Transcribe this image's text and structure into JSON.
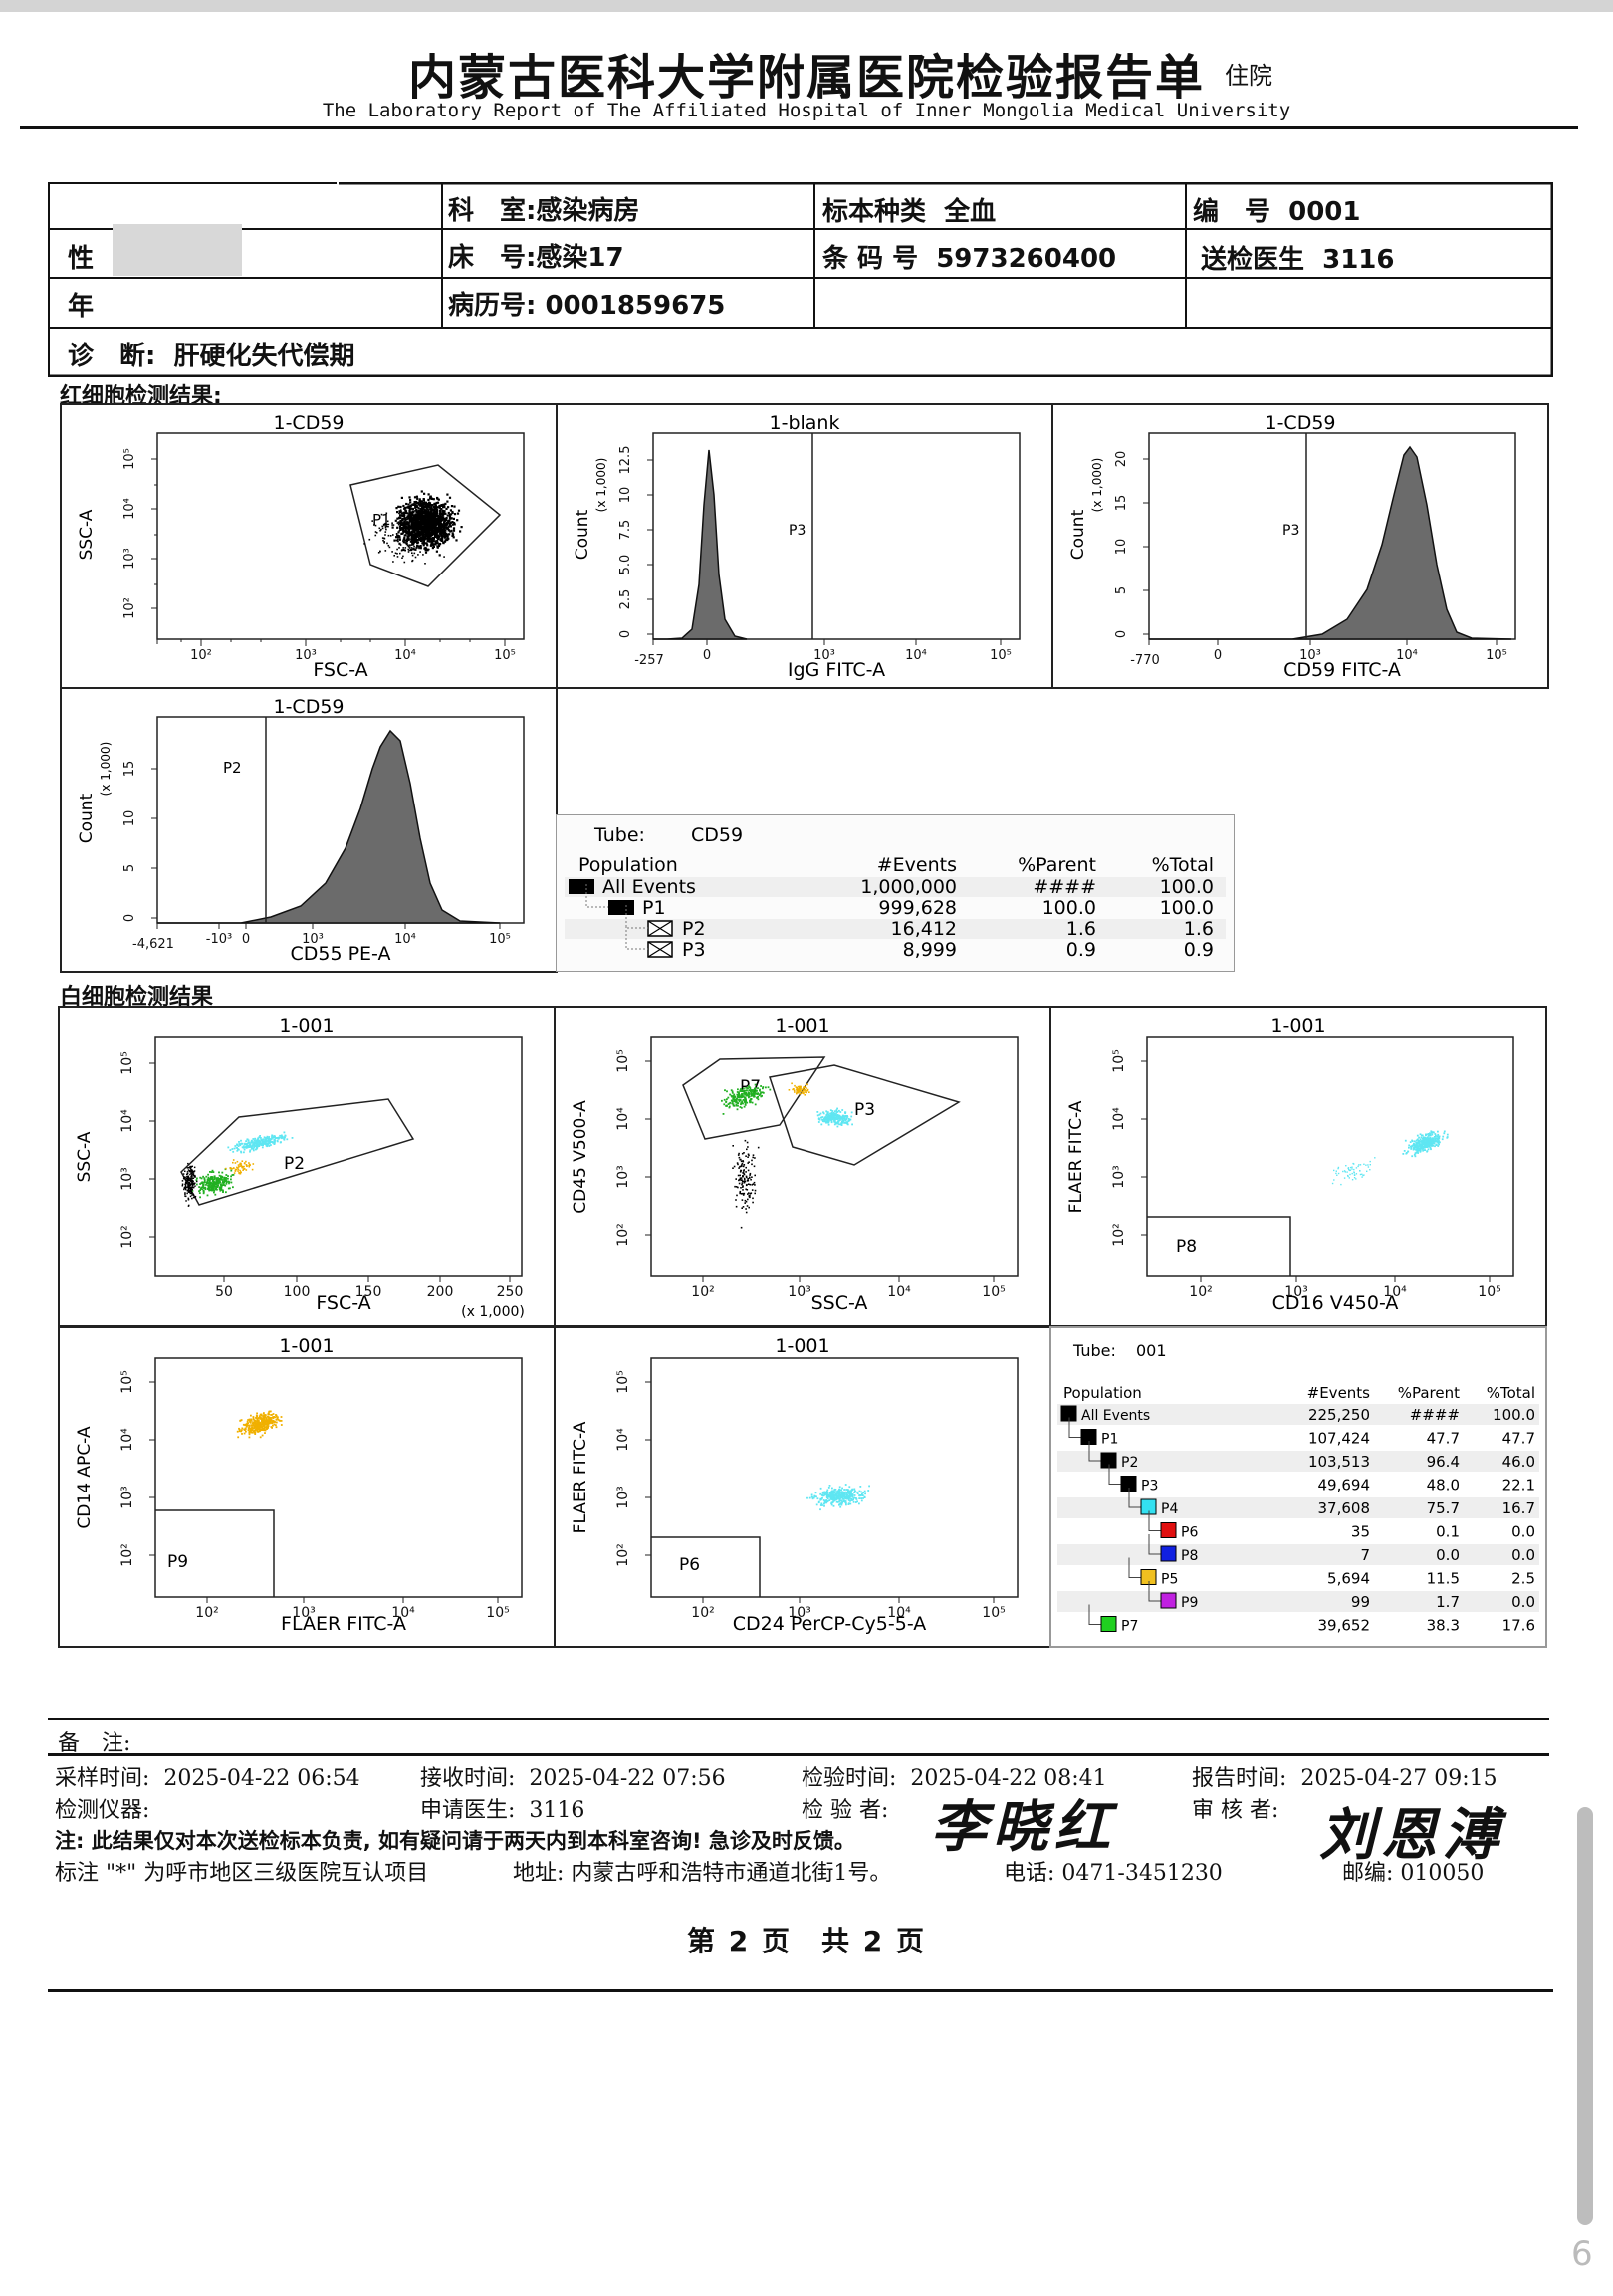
{
  "header": {
    "title_zh": "内蒙古医科大学附属医院检验报告单",
    "title_tag": "住院",
    "title_en": "The Laboratory Report of The  Affiliated Hospital of Inner Mongolia Medical University"
  },
  "patient": {
    "dept_label": "科　室:",
    "dept_value": "感染病房",
    "specimen_label": "标本种类",
    "specimen_value": "全血",
    "number_label": "编　号",
    "number_value": "0001",
    "gender_label": "性",
    "bed_label": "床　号:",
    "bed_value": "感染17",
    "barcode_label": "条 码 号",
    "barcode_value": "5973260400",
    "doctor_label": "送检医生",
    "doctor_value": "3116",
    "age_label": "年",
    "record_label": "病历号:",
    "record_value": "0001859675",
    "diagnosis_label": "诊　断:",
    "diagnosis_value": "肝硬化失代偿期"
  },
  "rbc_section_title": "红细胞检测结果:",
  "wbc_section_title": "白细胞检测结果",
  "plots": {
    "rbc_scatter": {
      "title": "1-CD59",
      "xlabel": "FSC-A",
      "ylabel": "SSC-A",
      "gate": "P1",
      "xticks": [
        "10²",
        "10³",
        "10⁴",
        "10⁵"
      ],
      "yticks": [
        "10²",
        "10³",
        "10⁴",
        "10⁵"
      ]
    },
    "rbc_blank": {
      "title": "1-blank",
      "xlabel": "IgG FITC-A",
      "ylabel": "Count",
      "yunit": "(x 1,000)",
      "gate": "P3",
      "xticks": [
        "-257",
        "0",
        "10³",
        "10⁴",
        "10⁵"
      ],
      "yticks": [
        "0",
        "2.5",
        "5.0",
        "7.5",
        "10",
        "12.5"
      ]
    },
    "rbc_cd59": {
      "title": "1-CD59",
      "xlabel": "CD59 FITC-A",
      "ylabel": "Count",
      "yunit": "(x 1,000)",
      "gate": "P3",
      "xticks": [
        "-770",
        "0",
        "10³",
        "10⁴",
        "10⁵"
      ],
      "yticks": [
        "0",
        "5",
        "10",
        "15",
        "20"
      ]
    },
    "rbc_cd55": {
      "title": "1-CD59",
      "xlabel": "CD55 PE-A",
      "ylabel": "Count",
      "yunit": "(x 1,000)",
      "gate": "P2",
      "xticks": [
        "-4,621",
        "-10³",
        "0",
        "10³",
        "10⁴",
        "10⁵"
      ],
      "yticks": [
        "0",
        "5",
        "10",
        "15"
      ]
    },
    "wbc_fsc_ssc": {
      "title": "1-001",
      "xlabel": "FSC-A",
      "xunit": "(x 1,000)",
      "ylabel": "SSC-A",
      "gate": "P2",
      "xticks": [
        "50",
        "100",
        "150",
        "200",
        "250"
      ],
      "yticks": [
        "10²",
        "10³",
        "10⁴",
        "10⁵"
      ]
    },
    "wbc_cd45": {
      "title": "1-001",
      "xlabel": "SSC-A",
      "ylabel": "CD45 V500-A",
      "gate_a": "P7",
      "gate_b": "P3",
      "xticks": [
        "10²",
        "10³",
        "10⁴",
        "10⁵"
      ],
      "yticks": [
        "10²",
        "10³",
        "10⁴",
        "10⁵"
      ]
    },
    "wbc_cd16": {
      "title": "1-001",
      "xlabel": "CD16 V450-A",
      "ylabel": "FLAER FITC-A",
      "gate": "P8",
      "xticks": [
        "10²",
        "10³",
        "10⁴",
        "10⁵"
      ],
      "yticks": [
        "10²",
        "10³",
        "10⁴",
        "10⁵"
      ]
    },
    "wbc_cd14": {
      "title": "1-001",
      "xlabel": "FLAER FITC-A",
      "ylabel": "CD14 APC-A",
      "gate": "P9",
      "xticks": [
        "10²",
        "10³",
        "10⁴",
        "10⁵"
      ],
      "yticks": [
        "10²",
        "10³",
        "10⁴",
        "10⁵"
      ]
    },
    "wbc_cd24": {
      "title": "1-001",
      "xlabel": "CD24 PerCP-Cy5-5-A",
      "ylabel": "FLAER FITC-A",
      "gate": "P6",
      "xticks": [
        "10²",
        "10³",
        "10⁴",
        "10⁵"
      ],
      "yticks": [
        "10²",
        "10³",
        "10⁴",
        "10⁵"
      ]
    }
  },
  "tube_cd59": {
    "tube_label": "Tube:",
    "tube_value": "CD59",
    "headers": [
      "Population",
      "#Events",
      "%Parent",
      "%Total"
    ],
    "rows": [
      {
        "name": "All Events",
        "events": "1,000,000",
        "parent": "####",
        "total": "100.0",
        "marker": "square"
      },
      {
        "name": "P1",
        "events": "999,628",
        "parent": "100.0",
        "total": "100.0",
        "marker": "square"
      },
      {
        "name": "P2",
        "events": "16,412",
        "parent": "1.6",
        "total": "1.6",
        "marker": "cross"
      },
      {
        "name": "P3",
        "events": "8,999",
        "parent": "0.9",
        "total": "0.9",
        "marker": "cross"
      }
    ]
  },
  "tube_001": {
    "tube_label": "Tube:",
    "tube_value": "001",
    "headers": [
      "Population",
      "#Events",
      "%Parent",
      "%Total"
    ],
    "rows": [
      {
        "name": "All Events",
        "events": "225,250",
        "parent": "####",
        "total": "100.0",
        "color": "#000000"
      },
      {
        "name": "P1",
        "events": "107,424",
        "parent": "47.7",
        "total": "47.7",
        "color": "#000000"
      },
      {
        "name": "P2",
        "events": "103,513",
        "parent": "96.4",
        "total": "46.0",
        "color": "#000000"
      },
      {
        "name": "P3",
        "events": "49,694",
        "parent": "48.0",
        "total": "22.1",
        "color": "#000000"
      },
      {
        "name": "P4",
        "events": "37,608",
        "parent": "75.7",
        "total": "16.7",
        "color": "#33e0f0"
      },
      {
        "name": "P6",
        "events": "35",
        "parent": "0.1",
        "total": "0.0",
        "color": "#e01010"
      },
      {
        "name": "P8",
        "events": "7",
        "parent": "0.0",
        "total": "0.0",
        "color": "#1020e0"
      },
      {
        "name": "P5",
        "events": "5,694",
        "parent": "11.5",
        "total": "2.5",
        "color": "#f0c020"
      },
      {
        "name": "P9",
        "events": "99",
        "parent": "1.7",
        "total": "0.0",
        "color": "#c020e0"
      },
      {
        "name": "P7",
        "events": "39,652",
        "parent": "38.3",
        "total": "17.6",
        "color": "#20d020"
      }
    ]
  },
  "footer": {
    "remark_label": "备　注:",
    "sample_time_label": "采样时间:",
    "sample_time": "2025-04-22 06:54",
    "receive_time_label": "接收时间:",
    "receive_time": "2025-04-22 07:56",
    "test_time_label": "检验时间:",
    "test_time": "2025-04-22 08:41",
    "report_time_label": "报告时间:",
    "report_time": "2025-04-27 09:15",
    "instrument_label": "检测仪器:",
    "applicant_label": "申请医生:",
    "applicant": "3116",
    "tester_label": "检 验 者:",
    "reviewer_label": "审 核 者:",
    "tester_signature": "李晓红",
    "reviewer_signature": "刘恩溥",
    "note": "注: 此结果仅对本次送检标本负责, 如有疑问请于两天内到本科室咨询! 急诊及时反馈。",
    "mark_note": "标注 \"*\" 为呼市地区三级医院互认项目",
    "address": "地址: 内蒙古呼和浩特市通道北街1号。",
    "phone": "电话: 0471-3451230",
    "postcode": "邮编: 010050",
    "page": "第 2 页　共 2 页",
    "edge_char": "6"
  },
  "colors": {
    "scatter_black": "#000000",
    "histogram_fill": "#6b6b6b",
    "cyan": "#5fe6f2",
    "green": "#22b022",
    "yellow": "#f0b000"
  }
}
